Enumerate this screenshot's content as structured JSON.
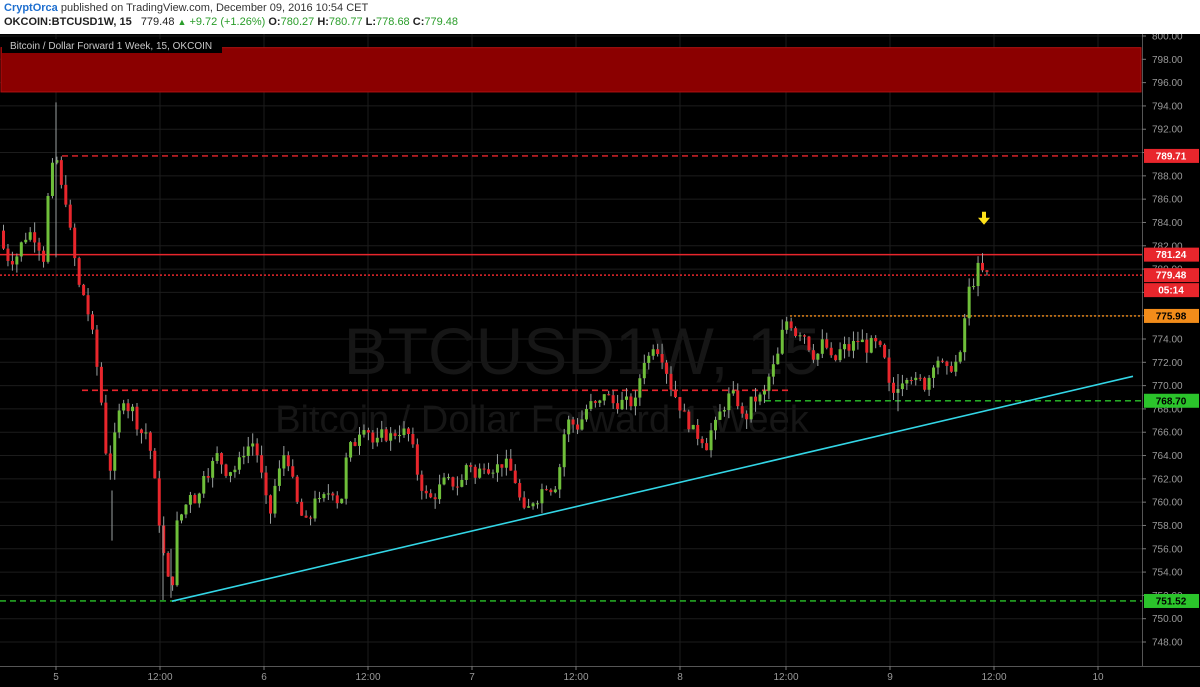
{
  "header": {
    "author": "CryptOrca",
    "published_text": " published on TradingView.com, December 09, 2016 10:54 CET",
    "symbol": "OKCOIN:BTCUSD1W, 15",
    "last": "779.48",
    "change": "+9.72 (+1.26%)",
    "o_label": "O:",
    "o_value": "780.27",
    "h_label": "H:",
    "h_value": "780.77",
    "l_label": "L:",
    "l_value": "778.68",
    "c_label": "C:",
    "c_value": "779.48"
  },
  "chart_data": {
    "type": "candlestick",
    "title": "Bitcoin / Dollar Forward 1 Week, 15, OKCOIN",
    "watermark_symbol": "BTCUSD1W, 15",
    "watermark_name": "Bitcoin / Dollar Forward 1 Week",
    "ylim": [
      746.5,
      801.0
    ],
    "y_ticks": [
      748,
      750,
      752,
      754,
      756,
      758,
      760,
      762,
      764,
      766,
      768,
      770,
      772,
      774,
      776,
      778,
      780,
      782,
      784,
      786,
      788,
      790,
      792,
      794,
      796,
      798,
      800
    ],
    "y_tick_labels": [
      "748.00",
      "750.00",
      "752.00",
      "754.00",
      "756.00",
      "758.00",
      "760.00",
      "762.00",
      "764.00",
      "766.00",
      "768.00",
      "770.00",
      "772.00",
      "774.00",
      "776.00",
      "778.00",
      "780.00",
      "782.00",
      "784.00",
      "786.00",
      "788.00",
      "790.00",
      "792.00",
      "794.00",
      "796.00",
      "798.00",
      "800.00"
    ],
    "x_ticks": [
      "5",
      "12:00",
      "6",
      "12:00",
      "7",
      "12:00",
      "8",
      "12:00",
      "9",
      "12:00",
      "10"
    ],
    "resistance_zone": [
      795.2,
      799.0
    ],
    "levels": [
      {
        "value": 789.71,
        "label": "789.71",
        "color": "#e8262c",
        "style": "dashed",
        "x_from": 62
      },
      {
        "value": 781.24,
        "label": "781.24",
        "color": "#e8262c",
        "style": "solid",
        "x_from": 0
      },
      {
        "value": 779.48,
        "label": "779.48",
        "color": "#e8262c",
        "style": "dotted",
        "x_from": 0
      },
      {
        "value": 775.98,
        "label": "775.98",
        "color": "#f28c1a",
        "style": "dotted",
        "x_from": 790
      },
      {
        "value": 768.7,
        "label": "768.70",
        "color": "#2bc42b",
        "style": "dashed",
        "x_from": 765
      },
      {
        "value": 751.52,
        "label": "751.52",
        "color": "#2bc42b",
        "style": "dashed",
        "x_from": 0
      }
    ],
    "mid_resistance": {
      "value": 769.6,
      "color": "#e8262c",
      "style": "dashed"
    },
    "countdown": "05:14",
    "trendline": {
      "color": "#33d6e6",
      "from": [
        172,
        751.5
      ],
      "to": [
        1133,
        770.8
      ]
    },
    "arrow_color": "#ffe21a",
    "candles": {
      "count": 222,
      "color_up": "#6fbf3a",
      "color_down": "#e8262c",
      "anchors": [
        [
          0,
          783.3
        ],
        [
          4,
          782.5
        ],
        [
          8,
          781.3
        ],
        [
          13,
          780.7
        ],
        [
          19,
          781.0
        ],
        [
          25,
          782.3
        ],
        [
          32,
          783.2
        ],
        [
          38,
          782.7
        ],
        [
          44,
          781.6
        ],
        [
          47,
          780.8
        ],
        [
          50,
          785.5
        ],
        [
          53,
          787.4
        ],
        [
          55,
          788.5
        ],
        [
          57,
          789.2
        ],
        [
          59,
          789.6
        ],
        [
          61,
          788.9
        ],
        [
          63,
          787.8
        ],
        [
          65,
          786.5
        ],
        [
          67,
          785.6
        ],
        [
          69,
          786.0
        ],
        [
          71,
          784.8
        ],
        [
          73,
          783.3
        ],
        [
          75,
          782.0
        ],
        [
          77,
          781.0
        ],
        [
          79,
          780.5
        ],
        [
          81,
          779.1
        ],
        [
          83,
          778.0
        ],
        [
          85,
          777.5
        ],
        [
          87,
          777.9
        ],
        [
          89,
          777.1
        ],
        [
          91,
          776.2
        ],
        [
          93,
          775.3
        ],
        [
          95,
          774.6
        ],
        [
          97,
          773.5
        ],
        [
          99,
          772.2
        ],
        [
          101,
          770.9
        ],
        [
          103,
          769.4
        ],
        [
          105,
          768.2
        ],
        [
          107,
          766.6
        ],
        [
          109,
          764.2
        ],
        [
          111,
          762.3
        ],
        [
          113,
          762.8
        ],
        [
          115,
          763.8
        ],
        [
          117,
          765.2
        ],
        [
          119,
          766.1
        ],
        [
          121,
          766.7
        ],
        [
          123,
          768.3
        ],
        [
          125,
          768.8
        ],
        [
          127,
          769.0
        ],
        [
          129,
          768.6
        ],
        [
          131,
          768.1
        ],
        [
          133,
          767.9
        ],
        [
          135,
          768.2
        ],
        [
          137,
          767.2
        ],
        [
          139,
          766.4
        ],
        [
          141,
          767.1
        ],
        [
          143,
          766.4
        ],
        [
          145,
          765.8
        ],
        [
          147,
          766.3
        ],
        [
          149,
          766.0
        ],
        [
          151,
          765.4
        ],
        [
          153,
          764.6
        ],
        [
          155,
          763.5
        ],
        [
          157,
          762.1
        ],
        [
          159,
          760.9
        ],
        [
          161,
          759.0
        ],
        [
          163,
          757.9
        ],
        [
          165,
          756.3
        ],
        [
          167,
          755.3
        ],
        [
          169,
          754.3
        ],
        [
          171,
          753.3
        ],
        [
          173,
          753.0
        ],
        [
          175,
          752.8
        ],
        [
          177,
          754.6
        ],
        [
          179,
          758.0
        ],
        [
          181,
          758.2
        ],
        [
          183,
          758.3
        ],
        [
          185,
          759.2
        ],
        [
          187,
          759.7
        ],
        [
          189,
          759.8
        ],
        [
          191,
          760.3
        ],
        [
          193,
          760.9
        ],
        [
          195,
          760.8
        ],
        [
          197,
          760.1
        ],
        [
          199,
          760.5
        ],
        [
          201,
          760.8
        ],
        [
          203,
          760.5
        ],
        [
          205,
          761.7
        ],
        [
          207,
          762.8
        ],
        [
          210,
          762.4
        ],
        [
          215,
          763.2
        ],
        [
          220,
          764.0
        ],
        [
          225,
          763.3
        ],
        [
          230,
          762.5
        ],
        [
          235,
          762.9
        ],
        [
          240,
          762.8
        ],
        [
          245,
          764.2
        ],
        [
          250,
          764.6
        ],
        [
          254,
          765.2
        ],
        [
          258,
          764.9
        ],
        [
          262,
          763.4
        ],
        [
          266,
          761.6
        ],
        [
          270,
          759.6
        ],
        [
          274,
          759.0
        ],
        [
          278,
          761.4
        ],
        [
          282,
          762.5
        ],
        [
          286,
          764.1
        ],
        [
          290,
          764.0
        ],
        [
          294,
          762.5
        ],
        [
          298,
          760.6
        ],
        [
          302,
          759.2
        ],
        [
          306,
          758.6
        ],
        [
          310,
          758.1
        ],
        [
          314,
          758.8
        ],
        [
          318,
          760.6
        ],
        [
          322,
          759.9
        ],
        [
          326,
          760.3
        ],
        [
          330,
          760.6
        ],
        [
          334,
          761.3
        ],
        [
          338,
          760.6
        ],
        [
          342,
          759.8
        ],
        [
          346,
          760.8
        ],
        [
          350,
          764.4
        ],
        [
          354,
          764.8
        ],
        [
          358,
          765.1
        ],
        [
          362,
          766.1
        ],
        [
          366,
          766.7
        ],
        [
          370,
          766.5
        ],
        [
          374,
          765.4
        ],
        [
          378,
          764.8
        ],
        [
          382,
          765.4
        ],
        [
          386,
          766.0
        ],
        [
          390,
          765.6
        ],
        [
          394,
          765.7
        ],
        [
          398,
          765.9
        ],
        [
          402,
          766.1
        ],
        [
          406,
          766.1
        ],
        [
          410,
          765.8
        ],
        [
          414,
          765.7
        ],
        [
          418,
          763.1
        ],
        [
          422,
          762.1
        ],
        [
          426,
          761.0
        ],
        [
          430,
          760.4
        ],
        [
          434,
          760.3
        ],
        [
          438,
          760.6
        ],
        [
          442,
          761.2
        ],
        [
          446,
          761.7
        ],
        [
          450,
          761.9
        ],
        [
          454,
          761.5
        ],
        [
          458,
          761.7
        ],
        [
          462,
          761.3
        ],
        [
          466,
          762.0
        ],
        [
          470,
          763.5
        ],
        [
          474,
          763.2
        ],
        [
          478,
          762.0
        ],
        [
          482,
          762.6
        ],
        [
          486,
          763.4
        ],
        [
          490,
          763.1
        ],
        [
          494,
          762.7
        ],
        [
          498,
          763.2
        ],
        [
          502,
          763.0
        ],
        [
          506,
          763.4
        ],
        [
          510,
          763.2
        ],
        [
          514,
          762.6
        ],
        [
          518,
          761.9
        ],
        [
          522,
          760.5
        ],
        [
          526,
          759.1
        ],
        [
          530,
          759.0
        ],
        [
          534,
          760.2
        ],
        [
          538,
          760.1
        ],
        [
          542,
          760.5
        ],
        [
          546,
          761.3
        ],
        [
          550,
          761.5
        ],
        [
          554,
          761.2
        ],
        [
          558,
          761.4
        ],
        [
          562,
          762.6
        ],
        [
          566,
          765.4
        ],
        [
          570,
          767.0
        ],
        [
          574,
          766.8
        ],
        [
          578,
          766.6
        ],
        [
          582,
          766.4
        ],
        [
          586,
          767.4
        ],
        [
          590,
          768.1
        ],
        [
          594,
          768.4
        ],
        [
          598,
          768.3
        ],
        [
          602,
          768.2
        ],
        [
          606,
          769.6
        ],
        [
          610,
          769.2
        ],
        [
          614,
          768.6
        ],
        [
          618,
          768.4
        ],
        [
          622,
          768.5
        ],
        [
          626,
          768.6
        ],
        [
          630,
          768.6
        ],
        [
          634,
          768.5
        ],
        [
          638,
          768.4
        ],
        [
          642,
          770.3
        ],
        [
          646,
          772.4
        ],
        [
          650,
          772.0
        ],
        [
          654,
          773.1
        ],
        [
          658,
          773.9
        ],
        [
          662,
          772.7
        ],
        [
          666,
          772.4
        ],
        [
          670,
          771.1
        ],
        [
          674,
          769.9
        ],
        [
          678,
          769.2
        ],
        [
          682,
          768.4
        ],
        [
          686,
          767.6
        ],
        [
          690,
          767.0
        ],
        [
          694,
          766.4
        ],
        [
          698,
          765.9
        ],
        [
          702,
          765.6
        ],
        [
          706,
          765.4
        ],
        [
          710,
          764.8
        ],
        [
          714,
          766.1
        ],
        [
          718,
          766.5
        ],
        [
          722,
          767.5
        ],
        [
          726,
          768.0
        ],
        [
          730,
          768.8
        ],
        [
          734,
          769.4
        ],
        [
          738,
          768.9
        ],
        [
          742,
          768.4
        ],
        [
          746,
          767.0
        ],
        [
          750,
          767.4
        ],
        [
          754,
          768.6
        ],
        [
          758,
          768.8
        ],
        [
          762,
          769.0
        ],
        [
          766,
          768.9
        ],
        [
          770,
          770.2
        ],
        [
          774,
          771.3
        ],
        [
          778,
          771.8
        ],
        [
          782,
          772.9
        ],
        [
          786,
          774.9
        ],
        [
          790,
          775.6
        ],
        [
          794,
          775.3
        ],
        [
          798,
          774.5
        ],
        [
          802,
          774.6
        ],
        [
          806,
          774.8
        ],
        [
          810,
          773.6
        ],
        [
          814,
          773.1
        ],
        [
          818,
          772.3
        ],
        [
          822,
          772.9
        ],
        [
          826,
          773.8
        ],
        [
          830,
          773.2
        ],
        [
          834,
          772.2
        ],
        [
          838,
          772.1
        ],
        [
          842,
          772.8
        ],
        [
          846,
          773.5
        ],
        [
          850,
          772.9
        ],
        [
          854,
          773.4
        ],
        [
          858,
          773.7
        ],
        [
          862,
          773.9
        ],
        [
          866,
          773.7
        ],
        [
          870,
          773.2
        ],
        [
          874,
          773.6
        ],
        [
          878,
          773.6
        ],
        [
          882,
          773.1
        ],
        [
          886,
          773.0
        ],
        [
          890,
          770.7
        ],
        [
          894,
          769.1
        ],
        [
          898,
          769.6
        ],
        [
          902,
          770.3
        ],
        [
          906,
          770.6
        ],
        [
          910,
          771.0
        ],
        [
          914,
          770.9
        ],
        [
          918,
          770.2
        ],
        [
          922,
          770.6
        ],
        [
          926,
          769.9
        ],
        [
          930,
          770.2
        ],
        [
          934,
          771.3
        ],
        [
          938,
          772.5
        ],
        [
          942,
          772.2
        ],
        [
          946,
          771.6
        ],
        [
          950,
          771.2
        ],
        [
          954,
          771.6
        ],
        [
          958,
          771.9
        ],
        [
          962,
          772.3
        ],
        [
          966,
          772.8
        ],
        [
          968,
          776.4
        ],
        [
          970,
          777.4
        ],
        [
          972,
          778.2
        ],
        [
          974,
          778.7
        ],
        [
          976,
          779.0
        ],
        [
          978,
          778.8
        ],
        [
          980,
          779.2
        ],
        [
          982,
          781.0
        ],
        [
          984,
          780.3
        ],
        [
          986,
          779.5
        ]
      ]
    }
  }
}
